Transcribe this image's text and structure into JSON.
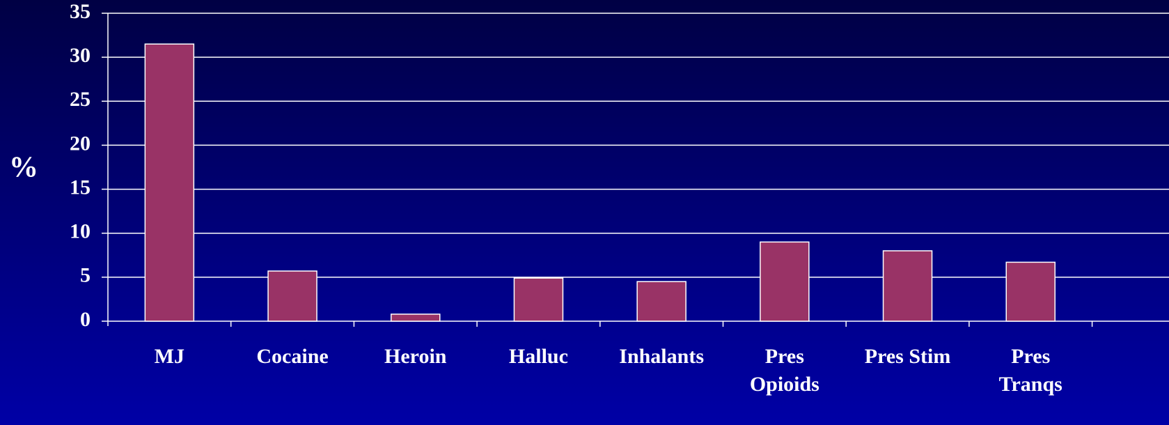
{
  "chart_data": {
    "type": "bar",
    "ylabel": "%",
    "categories": [
      "MJ",
      "Cocaine",
      "Heroin",
      "Halluc",
      "Inhalants",
      "Pres\nOpioids",
      "Pres Stim",
      "Pres\nTranqs"
    ],
    "values": [
      31.5,
      5.7,
      0.8,
      4.9,
      4.5,
      9.0,
      8.0,
      6.7
    ],
    "color": "#993366",
    "ylim": [
      0,
      35
    ],
    "yticks": [
      0,
      5,
      10,
      15,
      20,
      25,
      30,
      35
    ],
    "grid": true
  }
}
